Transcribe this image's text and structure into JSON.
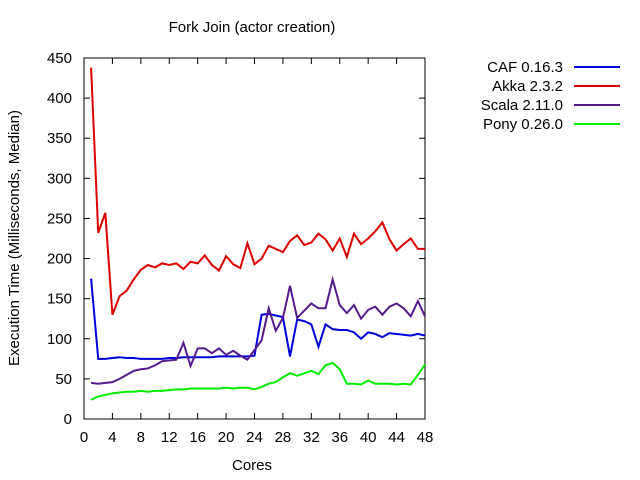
{
  "chart_data": {
    "type": "line",
    "title": "Fork Join (actor creation)",
    "xlabel": "Cores",
    "ylabel": "Execution Time (Milliseconds, Median)",
    "xlim": [
      0,
      48
    ],
    "ylim": [
      0,
      450
    ],
    "xticks": [
      "0",
      "4",
      "8",
      "12",
      "16",
      "20",
      "24",
      "28",
      "32",
      "36",
      "40",
      "44",
      "48"
    ],
    "yticks": [
      "0",
      "50",
      "100",
      "150",
      "200",
      "250",
      "300",
      "350",
      "400",
      "450"
    ],
    "grid": false,
    "legend_position": "outside-top-right",
    "x": [
      1,
      2,
      3,
      4,
      5,
      6,
      7,
      8,
      9,
      10,
      11,
      12,
      13,
      14,
      15,
      16,
      17,
      18,
      19,
      20,
      21,
      22,
      23,
      24,
      25,
      26,
      27,
      28,
      29,
      30,
      31,
      32,
      33,
      34,
      35,
      36,
      37,
      38,
      39,
      40,
      41,
      42,
      43,
      44,
      45,
      46,
      47,
      48
    ],
    "series": [
      {
        "name": "CAF 0.16.3",
        "color": "#0000dd",
        "values": [
          175,
          75,
          75,
          76,
          77,
          76,
          76,
          75,
          75,
          75,
          75,
          76,
          76,
          77,
          77,
          77,
          77,
          77,
          78,
          78,
          78,
          78,
          78,
          79,
          130,
          131,
          129,
          127,
          78,
          124,
          122,
          118,
          90,
          118,
          112,
          111,
          111,
          108,
          100,
          108,
          106,
          102,
          107,
          106,
          105,
          104,
          106,
          104
        ]
      },
      {
        "name": "Akka 2.3.2",
        "color": "#dd0000",
        "values": [
          438,
          232,
          257,
          130,
          153,
          160,
          174,
          186,
          192,
          189,
          194,
          192,
          194,
          187,
          196,
          194,
          204,
          192,
          185,
          203,
          193,
          188,
          219,
          193,
          200,
          216,
          212,
          208,
          222,
          229,
          217,
          220,
          231,
          224,
          210,
          225,
          202,
          231,
          218,
          225,
          234,
          245,
          224,
          210,
          218,
          225,
          212,
          212
        ]
      },
      {
        "name": "Scala 2.11.0",
        "color": "#551a8b",
        "values": [
          45,
          44,
          45,
          46,
          50,
          55,
          60,
          62,
          63,
          67,
          72,
          73,
          74,
          95,
          66,
          88,
          88,
          82,
          88,
          80,
          85,
          79,
          74,
          86,
          98,
          138,
          110,
          126,
          166,
          126,
          135,
          144,
          138,
          138,
          174,
          142,
          132,
          142,
          125,
          136,
          140,
          130,
          140,
          144,
          138,
          128,
          147,
          128
        ]
      },
      {
        "name": "Pony 0.26.0",
        "color": "#00ee00",
        "values": [
          24,
          28,
          30,
          32,
          33,
          34,
          34,
          35,
          34,
          35,
          35,
          36,
          37,
          37,
          38,
          38,
          38,
          38,
          38,
          39,
          38,
          39,
          39,
          37,
          40,
          44,
          46,
          52,
          57,
          54,
          57,
          60,
          56,
          67,
          70,
          62,
          44,
          44,
          43,
          48,
          44,
          44,
          44,
          43,
          44,
          43,
          55,
          68
        ]
      }
    ]
  }
}
